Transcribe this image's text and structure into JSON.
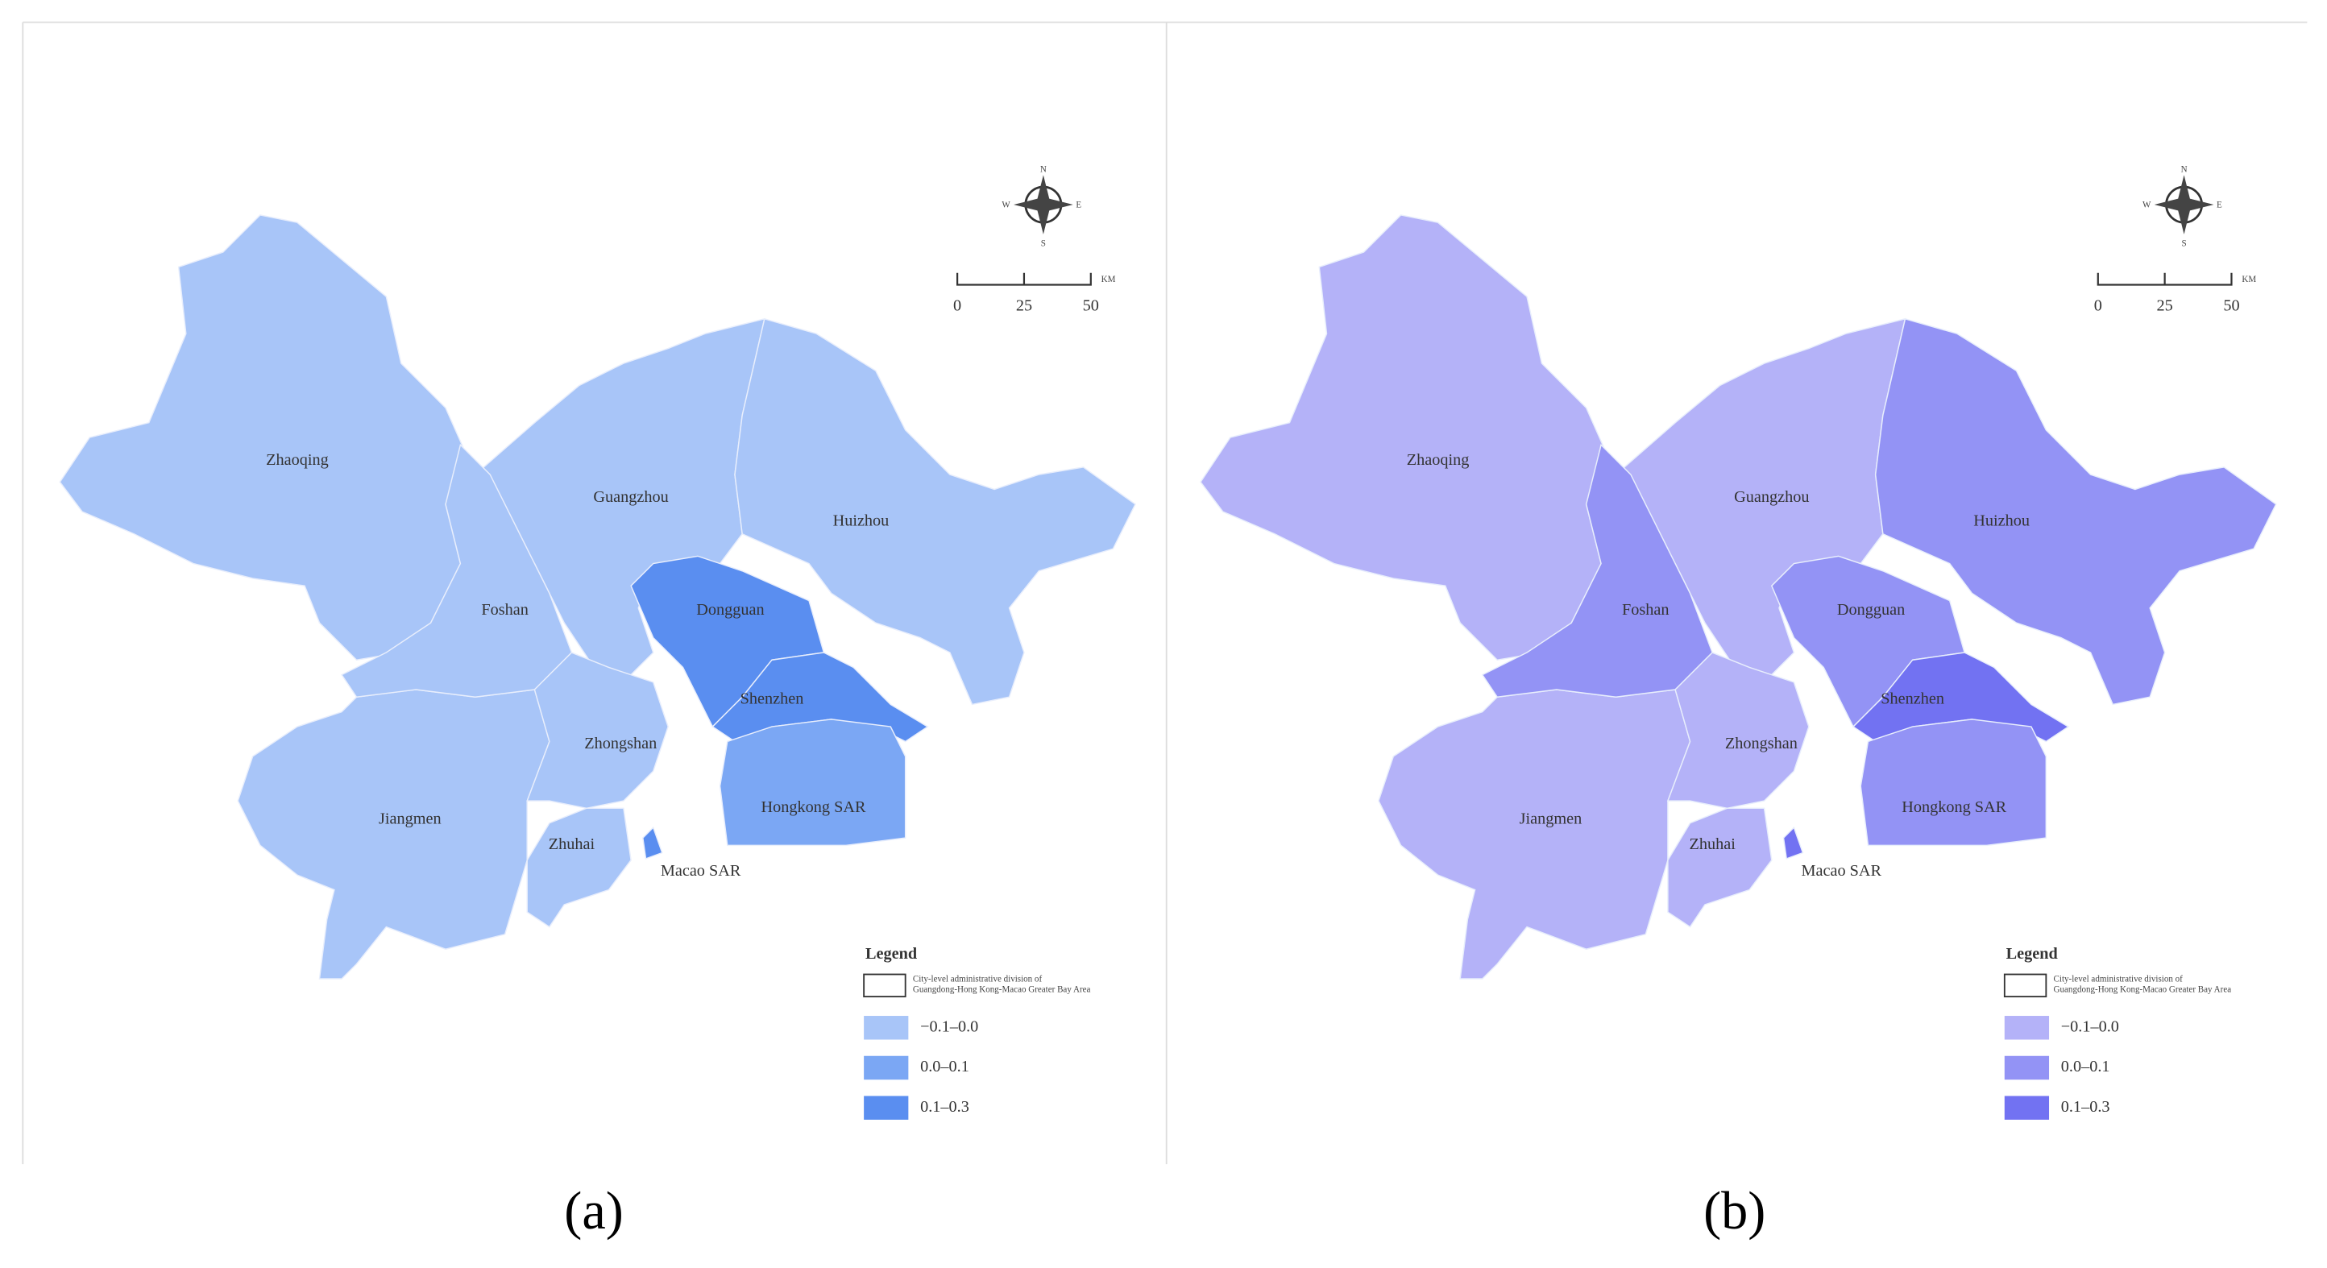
{
  "panels": [
    {
      "label": "(a)",
      "regions": [
        {
          "name": "Zhaoqing",
          "color": "#a8c5f8"
        },
        {
          "name": "Jiangmen",
          "color": "#a8c5f8"
        },
        {
          "name": "Guangzhou",
          "color": "#a8c5f8"
        },
        {
          "name": "Huizhou",
          "color": "#a8c5f8"
        },
        {
          "name": "Foshan",
          "color": "#a8c5f8"
        },
        {
          "name": "Zhongshan",
          "color": "#a8c5f8"
        },
        {
          "name": "Zhuhai",
          "color": "#a8c5f8"
        },
        {
          "name": "Dongguan",
          "color": "#5a8ef0"
        },
        {
          "name": "Shenzhen",
          "color": "#5a8ef0"
        },
        {
          "name": "Hongkong SAR",
          "color": "#7ba7f4"
        },
        {
          "name": "Macao SAR",
          "color": "#5a8ef0"
        }
      ],
      "compass": {
        "n": "N",
        "s": "S",
        "e": "E",
        "w": "W"
      },
      "scale": {
        "ticks": [
          "0",
          "25",
          "50"
        ],
        "unit": "KM"
      },
      "legend": {
        "title": "Legend",
        "description": [
          "City-level administrative division of",
          "Guangdong-Hong Kong-Macao Greater Bay Area"
        ],
        "classes": [
          {
            "label": "−0.1–0.0",
            "color": "#a8c5f8"
          },
          {
            "label": "0.0–0.1",
            "color": "#7ba7f4"
          },
          {
            "label": "0.1–0.3",
            "color": "#5a8ef0"
          }
        ]
      }
    },
    {
      "label": "(b)",
      "regions": [
        {
          "name": "Zhaoqing",
          "color": "#b4b2f8"
        },
        {
          "name": "Jiangmen",
          "color": "#b4b2f8"
        },
        {
          "name": "Guangzhou",
          "color": "#b4b2f8"
        },
        {
          "name": "Huizhou",
          "color": "#9393f5"
        },
        {
          "name": "Foshan",
          "color": "#9393f5"
        },
        {
          "name": "Zhongshan",
          "color": "#b4b2f8"
        },
        {
          "name": "Zhuhai",
          "color": "#b4b2f8"
        },
        {
          "name": "Dongguan",
          "color": "#9393f5"
        },
        {
          "name": "Shenzhen",
          "color": "#7272f2"
        },
        {
          "name": "Hongkong SAR",
          "color": "#9393f5"
        },
        {
          "name": "Macao SAR",
          "color": "#7272f2"
        }
      ],
      "compass": {
        "n": "N",
        "s": "S",
        "e": "E",
        "w": "W"
      },
      "scale": {
        "ticks": [
          "0",
          "25",
          "50"
        ],
        "unit": "KM"
      },
      "legend": {
        "title": "Legend",
        "description": [
          "City-level administrative division of",
          "Guangdong-Hong Kong-Macao Greater Bay Area"
        ],
        "classes": [
          {
            "label": "−0.1–0.0",
            "color": "#b4b2f8"
          },
          {
            "label": "0.0–0.1",
            "color": "#9393f5"
          },
          {
            "label": "0.1–0.3",
            "color": "#7272f2"
          }
        ]
      }
    }
  ]
}
